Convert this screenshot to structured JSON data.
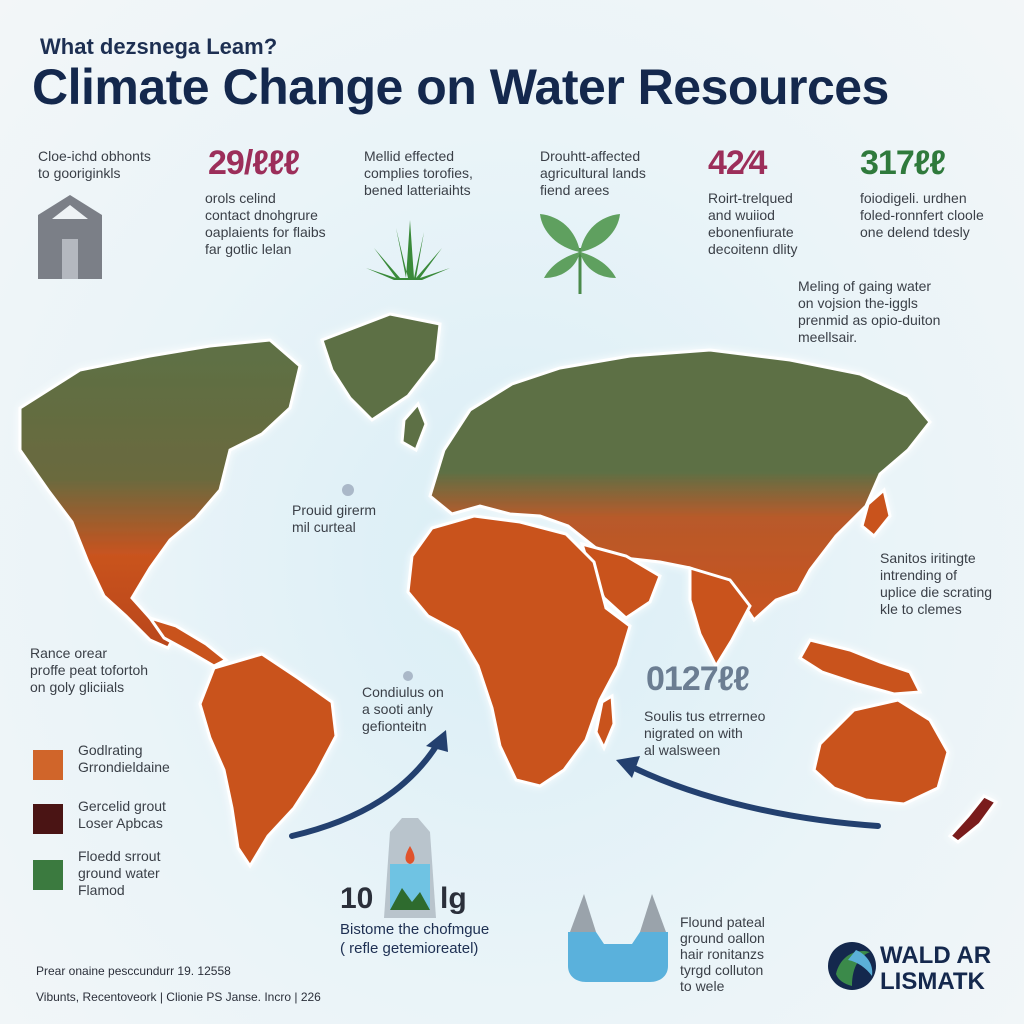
{
  "header": {
    "subtitle": "What dezsnega Leam?",
    "title": "Climate Change on Water Resources"
  },
  "stats": [
    {
      "id": "s1",
      "text_top": "Cloe-ichd obhonts\nto gooriginkls"
    },
    {
      "id": "s2",
      "number": "29/ℓℓℓ",
      "text": "orols celind\ncontact dnohgrure\noaplaients for flaibs\nfar gotlic lelan"
    },
    {
      "id": "s3",
      "text_top": "Mellid effected\ncomplies torofies,\nbened latteriaihts"
    },
    {
      "id": "s4",
      "text_top": "Drouhtt-affected\nagricultural lands\nfiend arees"
    },
    {
      "id": "s5",
      "number": "42⁄4",
      "text": "Roirt-trelqued\nand wuiiod\nebonenfiurate\ndecoitenn dlity"
    },
    {
      "id": "s6",
      "number": "317ℓℓ",
      "text": "foiodigeli. urdhen\nfoled-ronnfert cloole\none delend tdesly"
    }
  ],
  "callouts": {
    "melting": "Meling of gaing water\non vojsion the-iggls\nprenmid as opio-duiton\nmeellsair.",
    "proud": "Prouid girerm\nmil curteal",
    "sanitos": "Sanitos iritingte\nintrending of\nuplice die scrating\nkle to clemes",
    "range": "Rance orear\nproffe peat tofortoh\non goly gliciials",
    "condulus": "Condiulus on\na sooti anly\ngefionteitn",
    "souls_number": "0127ℓℓ",
    "souls": "Soulis tus etrrerneo\nnigrated on with\nal walsween"
  },
  "legend": [
    {
      "label": "Godlrating\nGrrondieldaine",
      "color": "#d0652a"
    },
    {
      "label": "Gercelid grout\nLoser Apbcas",
      "color": "#4a1414"
    },
    {
      "label": "Floedd srrout\nground water\nFlamod",
      "color": "#3b7a3f"
    }
  ],
  "bottom": {
    "big_left": "10",
    "big_right": "lg",
    "caption": "Bistome the chofmgue\n( refle getemioreatel)",
    "water_text": "Flound pateal\nground oallon\nhair ronitanzs\ntyrgd colluton\nto wele"
  },
  "footer": {
    "line1": "Prear onaine pesccundurr 19. 12558",
    "line2": "Vibunts, Recentoveork | Clionie PS Janse. Incro | 226"
  },
  "brand": {
    "line1": "WALD AR",
    "line2": "LISMATK"
  },
  "colors": {
    "brand_navy": "#14284d",
    "stat_magenta": "#9c2e5a",
    "stat_green": "#2f7a3c",
    "arrow_navy": "#23406f",
    "land_green": "#5d7045",
    "land_orange": "#c9531f"
  }
}
